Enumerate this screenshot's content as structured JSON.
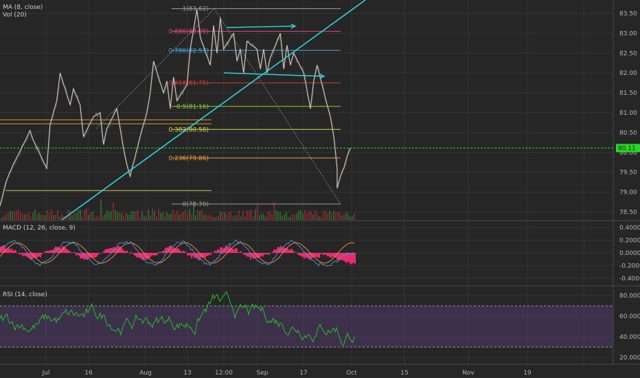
{
  "chart_data": [
    {
      "type": "line",
      "panel": "main",
      "title": "",
      "indicators": [
        {
          "id": "ma",
          "text": "MA (8, close)"
        },
        {
          "id": "vol",
          "text": "Vol (20)"
        }
      ],
      "yticks": [
        "83.50",
        "83.00",
        "82.50",
        "82.00",
        "81.50",
        "81.00",
        "80.50",
        "80.00",
        "79.50",
        "79.00",
        "78.50"
      ],
      "ylim": [
        78.3,
        83.7
      ],
      "last_price": {
        "label": "80.11",
        "value": 80.11
      },
      "fibonacci": [
        {
          "label": "1(83.62)",
          "value": 83.62,
          "color": "#9e9e9e"
        },
        {
          "label": "0.886(83.05)",
          "value": 83.05,
          "color": "#e0467a"
        },
        {
          "label": "0.786(82.57)",
          "value": 82.57,
          "color": "#4aa3df"
        },
        {
          "label": "0.618(81.75)",
          "value": 81.75,
          "color": "#d33a3a"
        },
        {
          "label": "0.5(81.16)",
          "value": 81.16,
          "color": "#8fcf3a"
        },
        {
          "label": "0.382(80.58)",
          "value": 80.58,
          "color": "#d8d84a"
        },
        {
          "label": "0.236(79.86)",
          "value": 79.86,
          "color": "#f0a030"
        },
        {
          "label": "0(78.70)",
          "value": 78.7,
          "color": "#9e9e9e"
        }
      ],
      "price_path": [
        [
          "2018-06-18",
          78.65
        ],
        [
          "2018-06-20",
          79.3
        ],
        [
          "2018-06-22",
          79.7
        ],
        [
          "2018-06-25",
          80.2
        ],
        [
          "2018-06-27",
          80.55
        ],
        [
          "2018-06-28",
          80.3
        ],
        [
          "2018-07-02",
          79.6
        ],
        [
          "2018-07-03",
          80.7
        ],
        [
          "2018-07-05",
          81.3
        ],
        [
          "2018-07-06",
          82.0
        ],
        [
          "2018-07-09",
          81.2
        ],
        [
          "2018-07-10",
          81.6
        ],
        [
          "2018-07-12",
          81.2
        ],
        [
          "2018-07-13",
          80.4
        ],
        [
          "2018-07-16",
          80.9
        ],
        [
          "2018-07-18",
          81.0
        ],
        [
          "2018-07-19",
          80.2
        ],
        [
          "2018-07-20",
          80.6
        ],
        [
          "2018-07-23",
          81.1
        ],
        [
          "2018-07-25",
          80.1
        ],
        [
          "2018-07-26",
          79.7
        ],
        [
          "2018-07-27",
          79.4
        ],
        [
          "2018-07-30",
          80.4
        ],
        [
          "2018-08-01",
          81.0
        ],
        [
          "2018-08-02",
          81.5
        ],
        [
          "2018-08-03",
          82.3
        ],
        [
          "2018-08-06",
          81.5
        ],
        [
          "2018-08-07",
          81.8
        ],
        [
          "2018-08-08",
          81.1
        ],
        [
          "2018-08-09",
          81.9
        ],
        [
          "2018-08-10",
          81.3
        ],
        [
          "2018-08-13",
          81.7
        ],
        [
          "2018-08-14",
          82.6
        ],
        [
          "2018-08-15",
          83.1
        ],
        [
          "2018-08-16",
          83.6
        ],
        [
          "2018-08-17",
          82.9
        ],
        [
          "2018-08-20",
          82.2
        ],
        [
          "2018-08-21",
          83.2
        ],
        [
          "2018-08-22",
          82.5
        ],
        [
          "2018-08-23",
          83.4
        ],
        [
          "2018-08-24",
          82.6
        ],
        [
          "2018-08-27",
          83.0
        ],
        [
          "2018-08-28",
          82.3
        ],
        [
          "2018-08-29",
          82.6
        ],
        [
          "2018-08-30",
          82.0
        ],
        [
          "2018-08-31",
          82.8
        ],
        [
          "2018-09-03",
          82.6
        ],
        [
          "2018-09-04",
          82.1
        ],
        [
          "2018-09-05",
          82.6
        ],
        [
          "2018-09-06",
          82.0
        ],
        [
          "2018-09-07",
          82.4
        ],
        [
          "2018-09-10",
          83.0
        ],
        [
          "2018-09-11",
          82.1
        ],
        [
          "2018-09-12",
          82.7
        ],
        [
          "2018-09-13",
          82.2
        ],
        [
          "2018-09-14",
          82.5
        ],
        [
          "2018-09-17",
          82.0
        ],
        [
          "2018-09-19",
          81.1
        ],
        [
          "2018-09-20",
          81.8
        ],
        [
          "2018-09-21",
          82.2
        ],
        [
          "2018-09-24",
          81.2
        ],
        [
          "2018-09-25",
          80.9
        ],
        [
          "2018-09-26",
          80.4
        ],
        [
          "2018-09-27",
          79.6
        ],
        [
          "2018-09-27",
          79.1
        ],
        [
          "2018-09-28",
          79.4
        ],
        [
          "2018-09-29",
          79.6
        ],
        [
          "2018-09-30",
          79.9
        ],
        [
          "2018-10-01",
          80.11
        ]
      ]
    },
    {
      "type": "line",
      "panel": "macd",
      "indicator": "MACD (12, 26, close, 9)",
      "yticks": [
        "0.4000",
        "0.2000",
        "0.0000",
        "-0.2000",
        "-0.4000"
      ],
      "ylim": [
        -0.5,
        0.5
      ]
    },
    {
      "type": "line",
      "panel": "rsi",
      "indicator": "RSI (14, close)",
      "yticks": [
        "80.0000",
        "60.0000",
        "40.0000",
        "20.0000"
      ],
      "ylim": [
        16,
        88
      ],
      "bands": [
        70,
        30
      ]
    }
  ],
  "xaxis": [
    "Jul",
    "16",
    "Aug",
    "13",
    "12:00",
    "Sep",
    "17",
    "Oct",
    "15",
    "Nov",
    "19"
  ],
  "colors": {
    "background": "#262626",
    "grid": "#343434",
    "price_line": "#cfcfcf",
    "trendline": "#2fd6e0",
    "current_price": "#26d926",
    "macd_line": "#4a90d9",
    "signal_line": "#f08a30",
    "histogram": "#ff2d7a",
    "rsi_line": "#21c421",
    "rsi_band": "#5a3f7a"
  }
}
